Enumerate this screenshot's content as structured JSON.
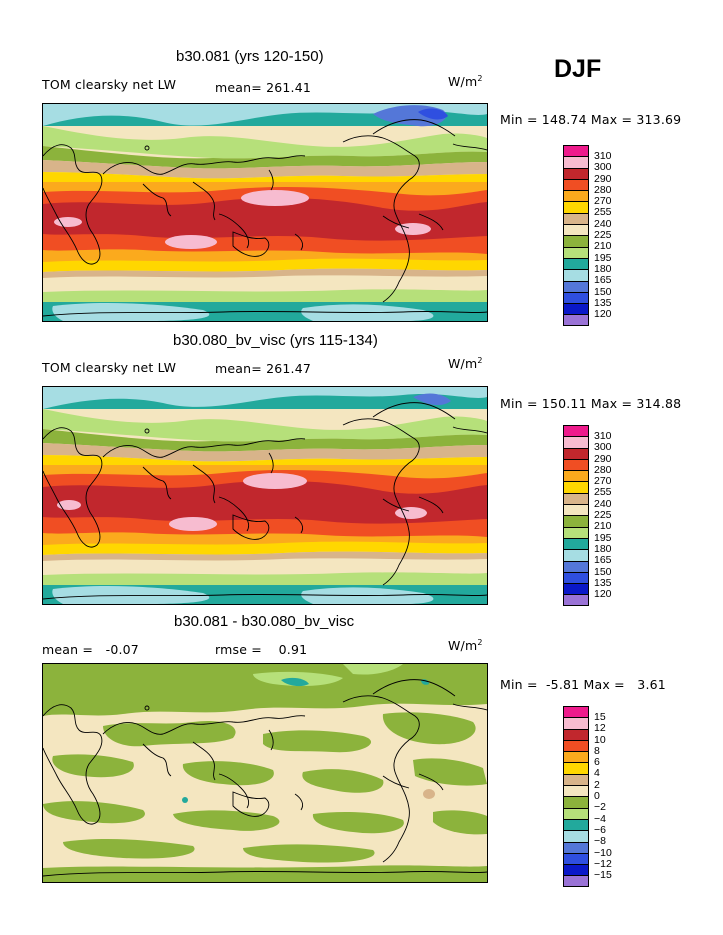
{
  "season": "DJF",
  "panels": [
    {
      "title": "b30.081 (yrs 120-150)",
      "left_label": "TOM clearsky net LW",
      "center_label": "mean= 261.41",
      "units": "W/m",
      "units_sup": "2",
      "minmax": "Min = 148.74 Max = 313.69",
      "colorbar": {
        "labels": [
          "310",
          "300",
          "290",
          "280",
          "270",
          "255",
          "240",
          "225",
          "210",
          "195",
          "180",
          "165",
          "150",
          "135",
          "120"
        ],
        "colors": [
          "#ee1b8c",
          "#f7bcd0",
          "#c1272d",
          "#f04e23",
          "#fbaa1d",
          "#ffd700",
          "#d8b48a",
          "#f4e6c0",
          "#8cb33c",
          "#b6e07a",
          "#22a99c",
          "#a6dde3",
          "#5477d8",
          "#2f4fe0",
          "#0a18c8",
          "#9a73d6"
        ],
        "note": "top swatch above first label"
      },
      "map_style": "full"
    },
    {
      "title": "b30.080_bv_visc (yrs 115-134)",
      "left_label": "TOM clearsky net LW",
      "center_label": "mean= 261.47",
      "units": "W/m",
      "units_sup": "2",
      "minmax": "Min = 150.11 Max = 314.88",
      "colorbar": {
        "labels": [
          "310",
          "300",
          "290",
          "280",
          "270",
          "255",
          "240",
          "225",
          "210",
          "195",
          "180",
          "165",
          "150",
          "135",
          "120"
        ],
        "colors": [
          "#ee1b8c",
          "#f7bcd0",
          "#c1272d",
          "#f04e23",
          "#fbaa1d",
          "#ffd700",
          "#d8b48a",
          "#f4e6c0",
          "#8cb33c",
          "#b6e07a",
          "#22a99c",
          "#a6dde3",
          "#5477d8",
          "#2f4fe0",
          "#0a18c8",
          "#9a73d6"
        ]
      },
      "map_style": "full"
    },
    {
      "title": "b30.081 - b30.080_bv_visc",
      "left_label": "mean =   -0.07",
      "center_label": "rmse =    0.91",
      "units": "W/m",
      "units_sup": "2",
      "minmax": "Min =  -5.81 Max =   3.61",
      "colorbar": {
        "labels": [
          "15",
          "12",
          "10",
          "8",
          "6",
          "4",
          "2",
          "0",
          "−2",
          "−4",
          "−6",
          "−8",
          "−10",
          "−12",
          "−15"
        ],
        "colors": [
          "#ee1b8c",
          "#f7bcd0",
          "#c1272d",
          "#f04e23",
          "#fbaa1d",
          "#ffd700",
          "#d8b48a",
          "#f4e6c0",
          "#8cb33c",
          "#b6e07a",
          "#22a99c",
          "#a6dde3",
          "#5477d8",
          "#2f4fe0",
          "#0a18c8",
          "#9a73d6"
        ]
      },
      "map_style": "diff"
    }
  ]
}
